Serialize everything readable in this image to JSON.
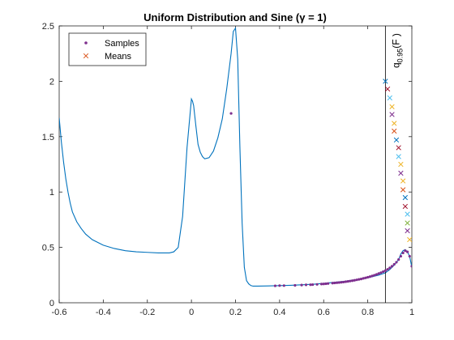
{
  "chart_data": {
    "type": "line",
    "title": "Uniform Distribution and Sine (γ = 1)",
    "xlabel": "",
    "ylabel": "",
    "xlim": [
      -0.6,
      1
    ],
    "ylim": [
      0,
      2.5
    ],
    "x_ticks": [
      -0.6,
      -0.4,
      -0.2,
      0,
      0.2,
      0.4,
      0.6,
      0.8,
      1
    ],
    "x_tick_labels": [
      "-0.6",
      "-0.4",
      "-0.2",
      "0",
      "0.2",
      "0.4",
      "0.6",
      "0.8",
      "1"
    ],
    "y_ticks": [
      0,
      0.5,
      1,
      1.5,
      2,
      2.5
    ],
    "y_tick_labels": [
      "0",
      "0.5",
      "1",
      "1.5",
      "2",
      "2.5"
    ],
    "grid": false,
    "legend": {
      "placement": "top-left",
      "entries": [
        {
          "label": "Samples",
          "marker": "dot",
          "color": "#7E2F8E"
        },
        {
          "label": "Means",
          "marker": "x",
          "color": "#D95319"
        }
      ]
    },
    "line_color": "#0072BD",
    "curve": {
      "x": [
        -0.6,
        -0.59,
        -0.58,
        -0.57,
        -0.56,
        -0.55,
        -0.54,
        -0.52,
        -0.5,
        -0.48,
        -0.45,
        -0.42,
        -0.4,
        -0.35,
        -0.3,
        -0.25,
        -0.2,
        -0.15,
        -0.1,
        -0.08,
        -0.06,
        -0.04,
        -0.02,
        0,
        0.005,
        0.01,
        0.02,
        0.03,
        0.04,
        0.05,
        0.06,
        0.08,
        0.1,
        0.12,
        0.14,
        0.16,
        0.18,
        0.19,
        0.2,
        0.21,
        0.22,
        0.23,
        0.24,
        0.25,
        0.26,
        0.27,
        0.28,
        0.3,
        0.35,
        0.4,
        0.45,
        0.5,
        0.55,
        0.6,
        0.65,
        0.7,
        0.75,
        0.8,
        0.85,
        0.88,
        0.9,
        0.92,
        0.94,
        0.95,
        0.96,
        0.97,
        0.98,
        0.99,
        1.0
      ],
      "y": [
        1.67,
        1.45,
        1.27,
        1.12,
        1.0,
        0.9,
        0.82,
        0.73,
        0.67,
        0.62,
        0.57,
        0.54,
        0.52,
        0.49,
        0.47,
        0.46,
        0.455,
        0.45,
        0.45,
        0.46,
        0.5,
        0.78,
        1.4,
        1.84,
        1.82,
        1.78,
        1.6,
        1.43,
        1.36,
        1.32,
        1.3,
        1.31,
        1.37,
        1.49,
        1.66,
        1.93,
        2.25,
        2.45,
        2.48,
        2.2,
        1.4,
        0.72,
        0.32,
        0.2,
        0.17,
        0.155,
        0.15,
        0.15,
        0.152,
        0.155,
        0.158,
        0.162,
        0.167,
        0.175,
        0.185,
        0.195,
        0.21,
        0.225,
        0.25,
        0.27,
        0.3,
        0.34,
        0.39,
        0.44,
        0.47,
        0.48,
        0.46,
        0.42,
        0.32
      ]
    },
    "vertical_line": {
      "x": 0.88,
      "label_main": "q",
      "label_sub": "0.95",
      "label_tail": "(F )"
    },
    "samples": {
      "x": [
        0.18,
        0.38,
        0.4,
        0.42,
        0.47,
        0.5,
        0.52,
        0.54,
        0.55,
        0.57,
        0.59,
        0.6,
        0.61,
        0.62,
        0.64,
        0.65,
        0.66,
        0.67,
        0.68,
        0.69,
        0.7,
        0.71,
        0.72,
        0.73,
        0.74,
        0.75,
        0.76,
        0.77,
        0.78,
        0.79,
        0.8,
        0.81,
        0.82,
        0.83,
        0.84,
        0.85,
        0.86,
        0.87,
        0.88,
        0.89,
        0.9,
        0.91,
        0.92,
        0.93,
        0.94,
        0.95,
        0.96,
        0.97,
        0.98,
        0.99,
        1.0
      ],
      "y": [
        1.71,
        0.153,
        0.155,
        0.155,
        0.157,
        0.16,
        0.162,
        0.163,
        0.164,
        0.166,
        0.169,
        0.17,
        0.172,
        0.174,
        0.177,
        0.179,
        0.181,
        0.183,
        0.185,
        0.187,
        0.19,
        0.193,
        0.196,
        0.199,
        0.203,
        0.207,
        0.211,
        0.215,
        0.22,
        0.225,
        0.23,
        0.236,
        0.242,
        0.249,
        0.256,
        0.264,
        0.272,
        0.281,
        0.29,
        0.302,
        0.315,
        0.33,
        0.347,
        0.366,
        0.39,
        0.42,
        0.45,
        0.47,
        0.46,
        0.42,
        0.33
      ],
      "color": "#7E2F8E"
    },
    "means": [
      {
        "x": 0.88,
        "y": 2.0,
        "color": "#0072BD"
      },
      {
        "x": 0.89,
        "y": 1.93,
        "color": "#A2142F"
      },
      {
        "x": 0.9,
        "y": 1.85,
        "color": "#4DBEEE"
      },
      {
        "x": 0.91,
        "y": 1.77,
        "color": "#EDB120"
      },
      {
        "x": 0.91,
        "y": 1.7,
        "color": "#7E2F8E"
      },
      {
        "x": 0.92,
        "y": 1.62,
        "color": "#EDB120"
      },
      {
        "x": 0.92,
        "y": 1.55,
        "color": "#D95319"
      },
      {
        "x": 0.93,
        "y": 1.47,
        "color": "#0072BD"
      },
      {
        "x": 0.94,
        "y": 1.4,
        "color": "#A2142F"
      },
      {
        "x": 0.94,
        "y": 1.32,
        "color": "#4DBEEE"
      },
      {
        "x": 0.95,
        "y": 1.25,
        "color": "#EDB120"
      },
      {
        "x": 0.95,
        "y": 1.17,
        "color": "#7E2F8E"
      },
      {
        "x": 0.96,
        "y": 1.1,
        "color": "#EDB120"
      },
      {
        "x": 0.96,
        "y": 1.02,
        "color": "#D95319"
      },
      {
        "x": 0.97,
        "y": 0.95,
        "color": "#0072BD"
      },
      {
        "x": 0.97,
        "y": 0.87,
        "color": "#A2142F"
      },
      {
        "x": 0.98,
        "y": 0.8,
        "color": "#4DBEEE"
      },
      {
        "x": 0.98,
        "y": 0.72,
        "color": "#77AC30"
      },
      {
        "x": 0.98,
        "y": 0.65,
        "color": "#7E2F8E"
      },
      {
        "x": 0.99,
        "y": 0.57,
        "color": "#EDB120"
      }
    ]
  }
}
